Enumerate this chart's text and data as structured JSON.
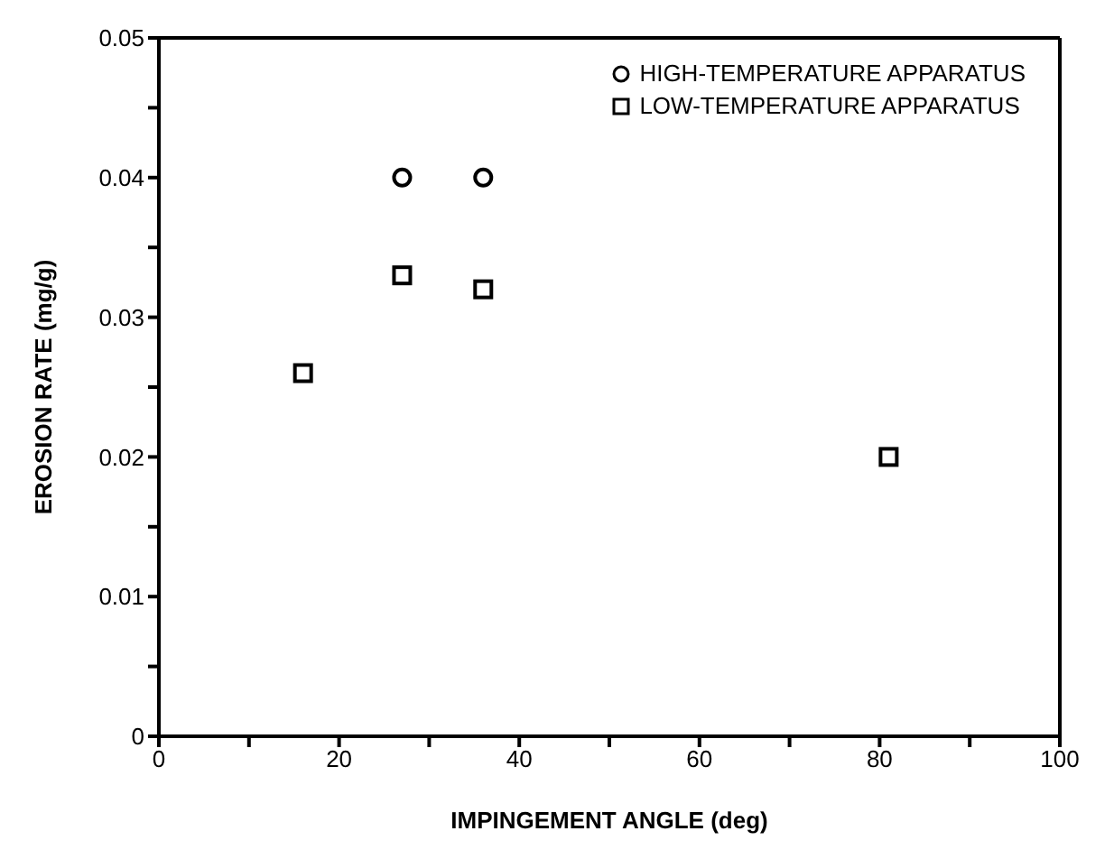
{
  "chart_data": {
    "type": "scatter",
    "xlabel": "IMPINGEMENT ANGLE (deg)",
    "ylabel": "EROSION RATE (mg/g)",
    "xlim": [
      0,
      100
    ],
    "ylim": [
      0,
      0.05
    ],
    "xticks": [
      0,
      {
        "value": 10,
        "label": null
      },
      20,
      {
        "value": 30,
        "label": null
      },
      40,
      {
        "value": 50,
        "label": null
      },
      60,
      {
        "value": 70,
        "label": null
      },
      80,
      {
        "value": 90,
        "label": null
      },
      100
    ],
    "yticks": [
      0,
      {
        "value": 0.005,
        "label": null
      },
      0.01,
      {
        "value": 0.015,
        "label": null
      },
      0.02,
      {
        "value": 0.025,
        "label": null
      },
      0.03,
      {
        "value": 0.035,
        "label": null
      },
      0.04,
      {
        "value": 0.045,
        "label": null
      },
      0.05
    ],
    "grid": false,
    "legend": "top right",
    "series": [
      {
        "name": "HIGH-TEMPERATURE APPARATUS",
        "color": "#000000",
        "marker": "circle",
        "x": [
          27,
          36
        ],
        "values": [
          0.04,
          0.04
        ]
      },
      {
        "name": "LOW-TEMPERATURE APPARATUS",
        "color": "#000000",
        "marker": "square",
        "x": [
          16,
          27,
          36,
          81
        ],
        "values": [
          0.026,
          0.033,
          0.032,
          0.02
        ]
      }
    ]
  }
}
